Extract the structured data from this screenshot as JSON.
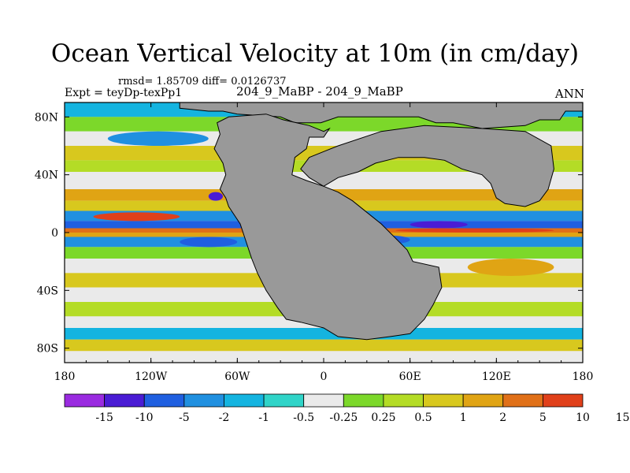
{
  "colors": {
    "land": "#999999",
    "levels": [
      "#9a2be0",
      "#4a1cd4",
      "#1f5fe0",
      "#2090e0",
      "#14b4e0",
      "#30d4c8",
      "#eaeaea",
      "#7cd82a",
      "#b4dc26",
      "#d8c81e",
      "#e0a414",
      "#e07018",
      "#e0401a"
    ]
  },
  "chart_data": {
    "type": "heatmap",
    "title": "Ocean Vertical Velocity at 10m (in cm/day)",
    "stats": "rmsd= 1.85709 diff= 0.0126737",
    "left_label": "Expt = teyDp-texPp1",
    "center_label": "204_9_MaBP - 204_9_MaBP",
    "right_label": "ANN",
    "xlim": [
      -180,
      180
    ],
    "ylim": [
      -90,
      90
    ],
    "x_ticks": [
      {
        "value": -180,
        "label": "180"
      },
      {
        "value": -120,
        "label": "120W"
      },
      {
        "value": -60,
        "label": "60W"
      },
      {
        "value": 0,
        "label": "0"
      },
      {
        "value": 60,
        "label": "60E"
      },
      {
        "value": 120,
        "label": "120E"
      },
      {
        "value": 180,
        "label": "180"
      }
    ],
    "y_ticks": [
      {
        "value": 80,
        "label": "80N"
      },
      {
        "value": 40,
        "label": "40N"
      },
      {
        "value": 0,
        "label": "0"
      },
      {
        "value": -40,
        "label": "40S"
      },
      {
        "value": -80,
        "label": "80S"
      }
    ],
    "colorbar_labels": [
      "-15",
      "-10",
      "-5",
      "-2",
      "-1",
      "-0.5",
      "-0.25",
      "0.25",
      "0.5",
      "1",
      "2",
      "5",
      "10",
      "15"
    ],
    "zonal_bands": [
      {
        "lat": [
          80,
          90
        ],
        "level": 4
      },
      {
        "lat": [
          70,
          80
        ],
        "level": 7
      },
      {
        "lat": [
          60,
          70
        ],
        "level": 6
      },
      {
        "lat": [
          50,
          60
        ],
        "level": 9
      },
      {
        "lat": [
          42,
          50
        ],
        "level": 8
      },
      {
        "lat": [
          30,
          42
        ],
        "level": 6
      },
      {
        "lat": [
          22,
          30
        ],
        "level": 10
      },
      {
        "lat": [
          15,
          22
        ],
        "level": 9
      },
      {
        "lat": [
          8,
          15
        ],
        "level": 3
      },
      {
        "lat": [
          3,
          8
        ],
        "level": 2
      },
      {
        "lat": [
          0,
          3
        ],
        "level": 11
      },
      {
        "lat": [
          -3,
          0
        ],
        "level": 10
      },
      {
        "lat": [
          -10,
          -3
        ],
        "level": 3
      },
      {
        "lat": [
          -18,
          -10
        ],
        "level": 7
      },
      {
        "lat": [
          -28,
          -18
        ],
        "level": 6
      },
      {
        "lat": [
          -38,
          -28
        ],
        "level": 9
      },
      {
        "lat": [
          -48,
          -38
        ],
        "level": 6
      },
      {
        "lat": [
          -58,
          -48
        ],
        "level": 8
      },
      {
        "lat": [
          -66,
          -58
        ],
        "level": 6
      },
      {
        "lat": [
          -74,
          -66
        ],
        "level": 4
      },
      {
        "lat": [
          -82,
          -74
        ],
        "level": 9
      },
      {
        "lat": [
          -90,
          -82
        ],
        "level": 6
      }
    ],
    "features": [
      {
        "lon": [
          -160,
          -100
        ],
        "lat": [
          8,
          14
        ],
        "level": 12
      },
      {
        "lon": [
          -80,
          -70
        ],
        "lat": [
          22,
          28
        ],
        "level": 1
      },
      {
        "lon": [
          50,
          160
        ],
        "lat": [
          0,
          3
        ],
        "level": 12
      },
      {
        "lon": [
          60,
          100
        ],
        "lat": [
          3,
          8
        ],
        "level": 1
      },
      {
        "lon": [
          -100,
          -60
        ],
        "lat": [
          -10,
          -3
        ],
        "level": 2
      },
      {
        "lon": [
          -150,
          -80
        ],
        "lat": [
          60,
          70
        ],
        "level": 3
      },
      {
        "lon": [
          100,
          160
        ],
        "lat": [
          -30,
          -18
        ],
        "level": 10
      },
      {
        "lon": [
          30,
          60
        ],
        "lat": [
          -8,
          -2
        ],
        "level": 2
      }
    ],
    "land_polygons": [
      {
        "name": "north-landmass",
        "points": [
          [
            -100,
            90
          ],
          [
            180,
            90
          ],
          [
            180,
            84
          ],
          [
            168,
            84
          ],
          [
            164,
            78
          ],
          [
            150,
            78
          ],
          [
            140,
            74
          ],
          [
            110,
            72
          ],
          [
            90,
            76
          ],
          [
            78,
            76
          ],
          [
            66,
            80
          ],
          [
            10,
            80
          ],
          [
            -2,
            76
          ],
          [
            -20,
            76
          ],
          [
            -30,
            80
          ],
          [
            -60,
            82
          ],
          [
            -70,
            84
          ],
          [
            -80,
            84
          ],
          [
            -100,
            86
          ]
        ]
      },
      {
        "name": "pangaea-west",
        "points": [
          [
            -66,
            80
          ],
          [
            -40,
            82
          ],
          [
            -28,
            78
          ],
          [
            -10,
            74
          ],
          [
            0,
            70
          ],
          [
            4,
            72
          ],
          [
            0,
            66
          ],
          [
            -10,
            66
          ],
          [
            -12,
            58
          ],
          [
            -20,
            52
          ],
          [
            -22,
            40
          ],
          [
            -12,
            36
          ],
          [
            0,
            32
          ],
          [
            10,
            28
          ],
          [
            20,
            22
          ],
          [
            30,
            14
          ],
          [
            40,
            6
          ],
          [
            50,
            -4
          ],
          [
            58,
            -12
          ],
          [
            62,
            -20
          ],
          [
            80,
            -24
          ],
          [
            82,
            -38
          ],
          [
            76,
            -50
          ],
          [
            70,
            -60
          ],
          [
            60,
            -70
          ],
          [
            46,
            -72
          ],
          [
            30,
            -74
          ],
          [
            10,
            -72
          ],
          [
            0,
            -66
          ],
          [
            -16,
            -62
          ],
          [
            -26,
            -60
          ],
          [
            -32,
            -52
          ],
          [
            -40,
            -40
          ],
          [
            -46,
            -28
          ],
          [
            -50,
            -18
          ],
          [
            -54,
            -6
          ],
          [
            -58,
            6
          ],
          [
            -62,
            12
          ],
          [
            -66,
            18
          ],
          [
            -68,
            24
          ],
          [
            -72,
            30
          ],
          [
            -68,
            40
          ],
          [
            -70,
            48
          ],
          [
            -76,
            58
          ],
          [
            -72,
            68
          ],
          [
            -74,
            76
          ]
        ]
      },
      {
        "name": "east-peninsula",
        "points": [
          [
            0,
            32
          ],
          [
            10,
            38
          ],
          [
            24,
            42
          ],
          [
            36,
            48
          ],
          [
            52,
            52
          ],
          [
            70,
            52
          ],
          [
            84,
            50
          ],
          [
            96,
            44
          ],
          [
            110,
            40
          ],
          [
            116,
            34
          ],
          [
            120,
            24
          ],
          [
            126,
            20
          ],
          [
            140,
            18
          ],
          [
            150,
            22
          ],
          [
            156,
            30
          ],
          [
            160,
            44
          ],
          [
            158,
            60
          ],
          [
            140,
            70
          ],
          [
            110,
            72
          ],
          [
            70,
            74
          ],
          [
            40,
            70
          ],
          [
            10,
            60
          ],
          [
            0,
            56
          ],
          [
            -10,
            52
          ],
          [
            -16,
            44
          ],
          [
            -10,
            38
          ]
        ]
      }
    ]
  }
}
